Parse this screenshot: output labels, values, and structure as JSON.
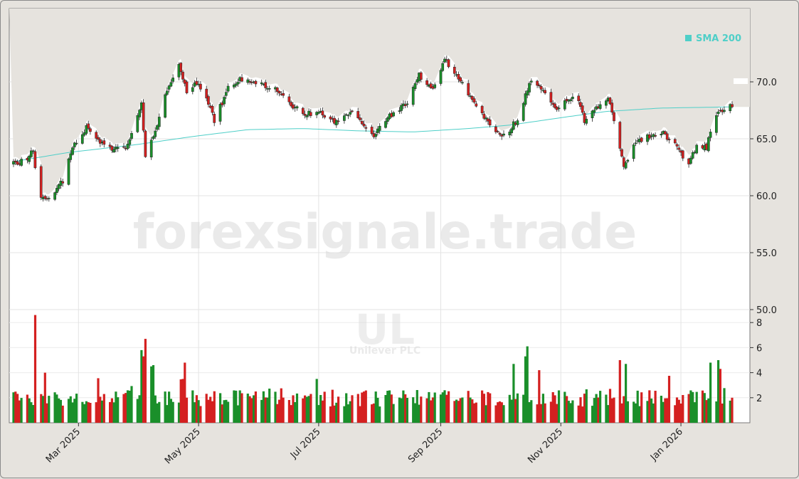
{
  "watermark": "forexsignale.trade",
  "symbol": "UL",
  "company": "Unilever PLC",
  "legend": {
    "label": "SMA 200",
    "color": "#4fcfc8"
  },
  "colors": {
    "up": "#1a8f2a",
    "down": "#d42020",
    "sma": "#4fcfc8"
  },
  "chart_data": {
    "type": "candlestick",
    "price_axis": {
      "ticks": [
        50.0,
        55.0,
        60.0,
        65.0,
        70.0
      ],
      "range": [
        46.1,
        73.5
      ]
    },
    "volume_axis": {
      "ticks": [
        2,
        4,
        6,
        8
      ],
      "range": [
        0,
        8.7
      ]
    },
    "x_ticks": [
      {
        "label": "Mar 2025",
        "date": "2025-03-01"
      },
      {
        "label": "May 2025",
        "date": "2025-05-01"
      },
      {
        "label": "Jul 2025",
        "date": "2025-07-01"
      },
      {
        "label": "Sep 2025",
        "date": "2025-09-01"
      },
      {
        "label": "Nov 2025",
        "date": "2025-11-01"
      },
      {
        "label": "Jan 2026",
        "date": "2026-01-01"
      }
    ],
    "date_range": [
      "2025-01-27",
      "2026-01-27"
    ],
    "price_keypoints": [
      [
        "2025-01-27",
        62.8
      ],
      [
        "2025-02-03",
        63.2
      ],
      [
        "2025-02-06",
        64.2
      ],
      [
        "2025-02-08",
        60.3
      ],
      [
        "2025-02-12",
        59.6
      ],
      [
        "2025-02-17",
        60.5
      ],
      [
        "2025-02-21",
        61.3
      ],
      [
        "2025-02-26",
        64.2
      ],
      [
        "2025-03-05",
        66.0
      ],
      [
        "2025-03-12",
        64.6
      ],
      [
        "2025-03-19",
        64.0
      ],
      [
        "2025-03-26",
        64.4
      ],
      [
        "2025-04-02",
        68.1
      ],
      [
        "2025-04-04",
        63.6
      ],
      [
        "2025-04-08",
        65.2
      ],
      [
        "2025-04-14",
        68.8
      ],
      [
        "2025-04-21",
        71.6
      ],
      [
        "2025-04-25",
        69.0
      ],
      [
        "2025-04-30",
        70.0
      ],
      [
        "2025-05-05",
        68.8
      ],
      [
        "2025-05-09",
        66.5
      ],
      [
        "2025-05-16",
        69.5
      ],
      [
        "2025-05-23",
        70.3
      ],
      [
        "2025-06-02",
        69.8
      ],
      [
        "2025-06-09",
        69.3
      ],
      [
        "2025-06-16",
        68.0
      ],
      [
        "2025-06-23",
        67.3
      ],
      [
        "2025-07-03",
        67.2
      ],
      [
        "2025-07-11",
        66.3
      ],
      [
        "2025-07-18",
        67.5
      ],
      [
        "2025-07-28",
        65.2
      ],
      [
        "2025-08-05",
        66.8
      ],
      [
        "2025-08-15",
        68.2
      ],
      [
        "2025-08-21",
        70.6
      ],
      [
        "2025-08-28",
        69.4
      ],
      [
        "2025-09-03",
        72.0
      ],
      [
        "2025-09-10",
        70.4
      ],
      [
        "2025-09-18",
        68.0
      ],
      [
        "2025-09-26",
        66.2
      ],
      [
        "2025-10-03",
        65.2
      ],
      [
        "2025-10-10",
        66.7
      ],
      [
        "2025-10-16",
        70.0
      ],
      [
        "2025-10-22",
        69.4
      ],
      [
        "2025-10-29",
        67.6
      ],
      [
        "2025-11-05",
        68.6
      ],
      [
        "2025-11-10",
        68.5
      ],
      [
        "2025-11-13",
        66.5
      ],
      [
        "2025-11-20",
        67.9
      ],
      [
        "2025-11-25",
        68.6
      ],
      [
        "2025-11-28",
        66.8
      ],
      [
        "2025-12-03",
        62.4
      ],
      [
        "2025-12-08",
        64.7
      ],
      [
        "2025-12-15",
        65.2
      ],
      [
        "2025-12-22",
        65.6
      ],
      [
        "2025-12-29",
        64.6
      ],
      [
        "2026-01-05",
        62.6
      ],
      [
        "2026-01-09",
        64.5
      ],
      [
        "2026-01-14",
        64.3
      ],
      [
        "2026-01-19",
        67.3
      ],
      [
        "2026-01-27",
        68.1
      ]
    ],
    "sma200": [
      [
        "2025-01-27",
        63.0
      ],
      [
        "2025-02-24",
        63.8
      ],
      [
        "2025-03-31",
        64.5
      ],
      [
        "2025-04-28",
        65.2
      ],
      [
        "2025-05-26",
        65.8
      ],
      [
        "2025-06-23",
        65.9
      ],
      [
        "2025-07-21",
        65.7
      ],
      [
        "2025-08-18",
        65.6
      ],
      [
        "2025-09-15",
        65.9
      ],
      [
        "2025-10-06",
        66.2
      ],
      [
        "2025-11-03",
        66.9
      ],
      [
        "2025-11-24",
        67.4
      ],
      [
        "2025-12-22",
        67.7
      ],
      [
        "2026-01-27",
        67.8
      ]
    ],
    "last_close": 67.8
  }
}
